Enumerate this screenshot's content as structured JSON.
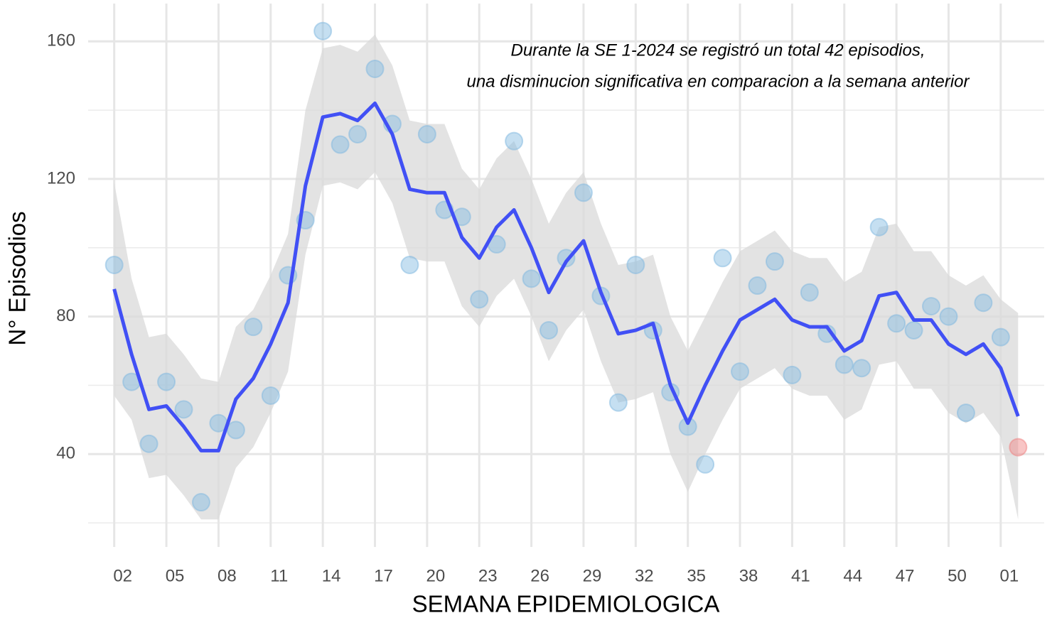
{
  "chart_data": {
    "type": "line",
    "annotation": [
      "Durante la SE 1-2024 se registró un total 42 episodios,",
      "una disminucion significativa en comparacion a la semana anterior"
    ],
    "x_label": "SEMANA EPIDEMIOLOGICA",
    "y_label": "N° Episodios",
    "x": [
      2,
      3,
      4,
      5,
      6,
      7,
      8,
      9,
      10,
      11,
      12,
      13,
      14,
      15,
      16,
      17,
      18,
      19,
      20,
      21,
      22,
      23,
      24,
      25,
      26,
      27,
      28,
      29,
      30,
      31,
      32,
      33,
      34,
      35,
      36,
      37,
      38,
      39,
      40,
      41,
      42,
      43,
      44,
      45,
      46,
      47,
      48,
      49,
      50,
      51,
      52,
      53,
      54
    ],
    "points": {
      "color": "#7fb8e0",
      "last_color": "#f07f7f",
      "values": [
        95,
        61,
        43,
        61,
        53,
        26,
        49,
        47,
        77,
        57,
        92,
        108,
        163,
        130,
        133,
        152,
        136,
        95,
        133,
        111,
        109,
        85,
        101,
        131,
        91,
        76,
        97,
        116,
        86,
        55,
        95,
        76,
        58,
        48,
        37,
        97,
        64,
        89,
        96,
        63,
        87,
        75,
        66,
        65,
        106,
        78,
        76,
        83,
        80,
        52,
        84,
        74,
        42
      ]
    },
    "trend": {
      "color": "#4150f5",
      "values": [
        88,
        69,
        53,
        54,
        48,
        41,
        41,
        56,
        62,
        72,
        84,
        118,
        138,
        139,
        137,
        142,
        133,
        117,
        116,
        116,
        103,
        97,
        106,
        111,
        100,
        87,
        96,
        102,
        87,
        75,
        76,
        78,
        60,
        49,
        60,
        70,
        79,
        82,
        85,
        79,
        77,
        77,
        70,
        73,
        86,
        87,
        79,
        79,
        72,
        69,
        72,
        65,
        51
      ]
    },
    "band": {
      "color": "#d9d9d9",
      "upper": [
        119,
        91,
        74,
        75,
        69,
        62,
        61,
        77,
        82,
        92,
        104,
        140,
        158,
        159,
        157,
        162,
        153,
        137,
        136,
        136,
        123,
        117,
        126,
        131,
        120,
        107,
        116,
        122,
        107,
        95,
        96,
        98,
        80,
        70,
        80,
        90,
        99,
        102,
        105,
        99,
        97,
        97,
        90,
        93,
        106,
        107,
        99,
        99,
        92,
        89,
        92,
        85,
        81
      ],
      "lower": [
        57,
        50,
        33,
        34,
        28,
        21,
        21,
        36,
        42,
        52,
        64,
        98,
        118,
        119,
        117,
        122,
        113,
        97,
        96,
        96,
        83,
        77,
        86,
        91,
        80,
        67,
        76,
        82,
        67,
        55,
        56,
        58,
        40,
        29,
        40,
        50,
        59,
        62,
        65,
        59,
        57,
        57,
        50,
        53,
        66,
        67,
        59,
        59,
        52,
        49,
        52,
        45,
        21
      ]
    },
    "xlim": [
      0.5,
      55.5
    ],
    "ylim": [
      13,
      171
    ],
    "xticks": [
      {
        "value": 2,
        "label": "02"
      },
      {
        "value": 5,
        "label": "05"
      },
      {
        "value": 8,
        "label": "08"
      },
      11,
      14,
      17,
      20,
      23,
      26,
      29,
      32,
      35,
      38,
      41,
      44,
      47,
      50,
      {
        "value": 53,
        "label": "01"
      }
    ],
    "yticks": [
      40,
      80,
      120,
      160
    ],
    "minor_yticks": [
      20,
      60,
      100,
      140
    ],
    "grid": true
  }
}
